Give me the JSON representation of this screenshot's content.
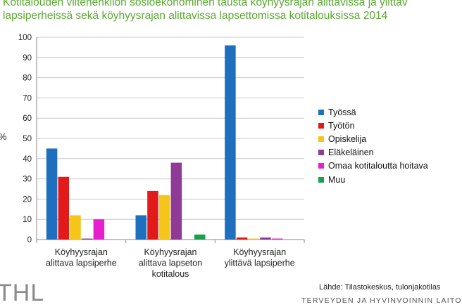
{
  "title_line1": "Kotitalouden viitehenkilön sosioekonominen tausta köyhyysrajan alittavissa ja ylittäv",
  "title_line2": "lapsiperheissä sekä köyhyysrajan alittavissa lapsettomissa kotitalouksissa 2014",
  "source": "Lähde: Tilastokeskus, tulonjakotilas",
  "footer_org": "TERVEYDEN JA HYVINVOINNIN LAITO",
  "logo_text": "THL",
  "chart_data": {
    "type": "bar",
    "title": "",
    "ylabel": "%",
    "xlabel": "",
    "ylim": [
      0,
      100
    ],
    "yticks": [
      "0",
      "10",
      "20",
      "30",
      "40",
      "50",
      "60",
      "70",
      "80",
      "90",
      "100"
    ],
    "grid": true,
    "legend_position": "right",
    "categories": [
      [
        "Köyhyysrajan",
        "alittava lapsiperhe"
      ],
      [
        "Köyhyysrajan",
        "alittava lapseton",
        "kotitalous"
      ],
      [
        "Köyhyysrajan",
        "ylittävä lapsiperhe"
      ]
    ],
    "series": [
      {
        "name": "Työssä",
        "color": "#1f6fbf",
        "values": [
          45,
          12,
          96
        ]
      },
      {
        "name": "Työtön",
        "color": "#e21a1a",
        "values": [
          31,
          24,
          1
        ]
      },
      {
        "name": "Opiskelija",
        "color": "#f5c518",
        "values": [
          12,
          22,
          0.5
        ]
      },
      {
        "name": "Eläkeläinen",
        "color": "#8e3a96",
        "values": [
          0.5,
          38,
          1
        ]
      },
      {
        "name": "Omaa kotitaloutta hoitava",
        "color": "#e81fcf",
        "values": [
          10,
          0,
          0.5
        ]
      },
      {
        "name": "Muu",
        "color": "#1aa04a",
        "values": [
          0,
          2.5,
          0
        ]
      }
    ]
  }
}
